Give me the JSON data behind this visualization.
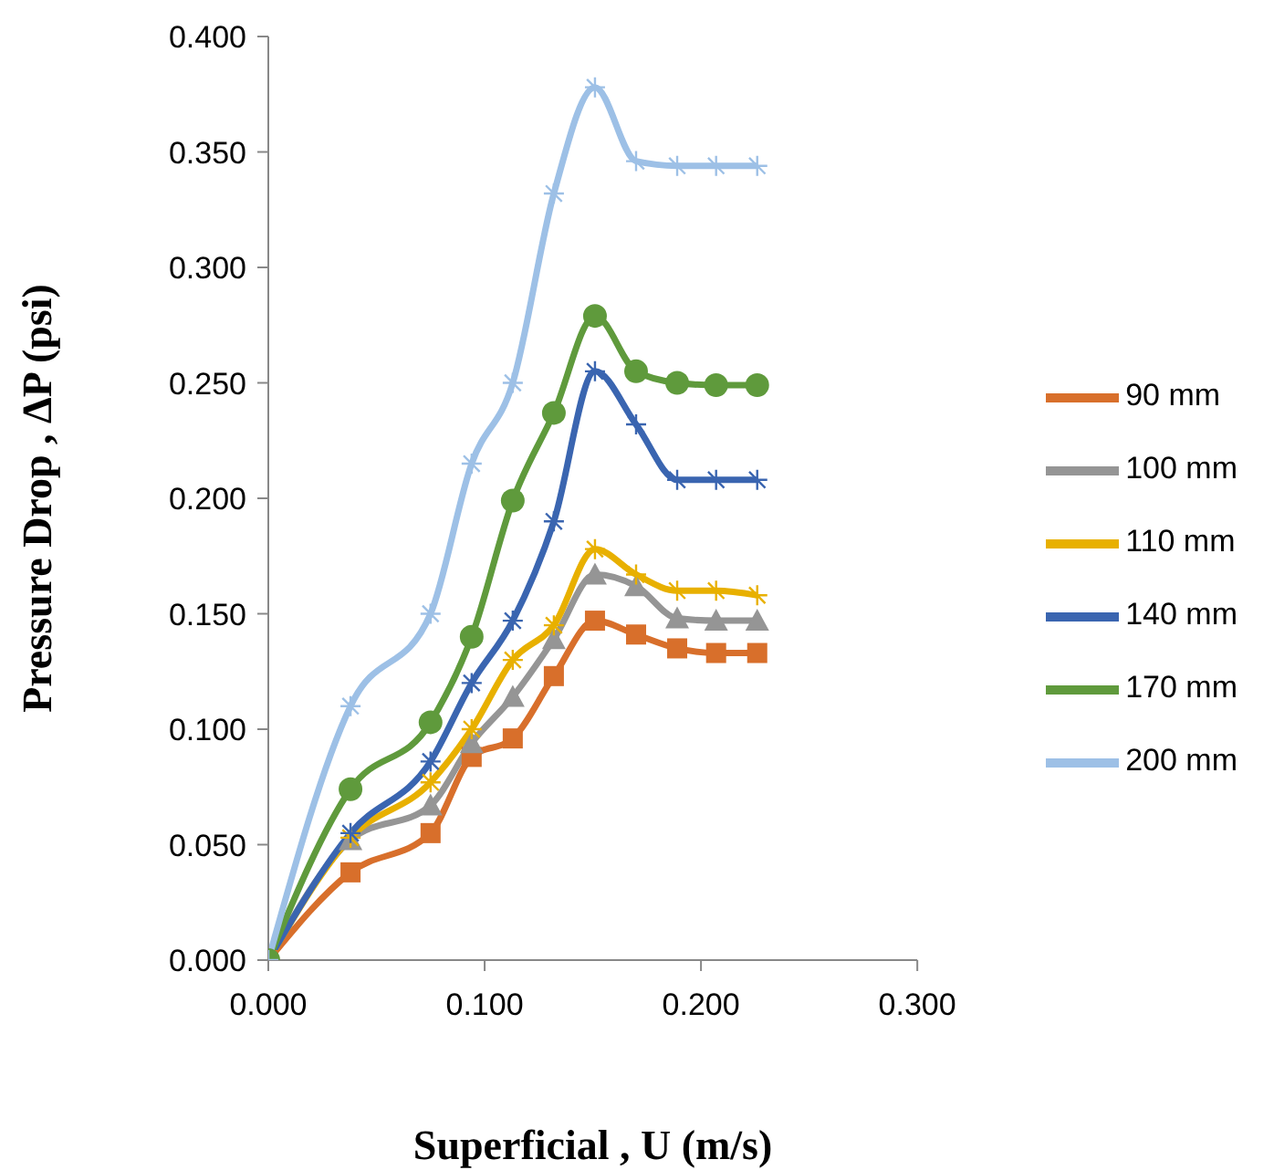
{
  "chart_data": {
    "type": "line",
    "xlabel": "Superficial , U (m/s)",
    "ylabel": "Pressure Drop , ΔP  (psi)",
    "x": [
      0,
      0.038,
      0.075,
      0.094,
      0.113,
      0.132,
      0.151,
      0.17,
      0.189,
      0.207,
      0.226
    ],
    "series": [
      {
        "name": "90 mm",
        "color": "#d86f2b",
        "marker": "square",
        "values": [
          0,
          0.038,
          0.055,
          0.088,
          0.096,
          0.123,
          0.147,
          0.141,
          0.135,
          0.133,
          0.133
        ]
      },
      {
        "name": "100 mm",
        "color": "#959595",
        "marker": "triangle",
        "values": [
          0,
          0.052,
          0.067,
          0.094,
          0.114,
          0.139,
          0.167,
          0.162,
          0.148,
          0.147,
          0.147
        ]
      },
      {
        "name": "110 mm",
        "color": "#e8b000",
        "marker": "cross",
        "values": [
          0,
          0.053,
          0.077,
          0.1,
          0.13,
          0.145,
          0.178,
          0.167,
          0.16,
          0.16,
          0.158
        ]
      },
      {
        "name": "140 mm",
        "color": "#3a65b0",
        "marker": "cross",
        "values": [
          0,
          0.055,
          0.086,
          0.12,
          0.147,
          0.19,
          0.255,
          0.232,
          0.208,
          0.208,
          0.208
        ]
      },
      {
        "name": "170 mm",
        "color": "#5f9a3c",
        "marker": "circle",
        "values": [
          0,
          0.074,
          0.103,
          0.14,
          0.199,
          0.237,
          0.279,
          0.255,
          0.25,
          0.249,
          0.249
        ]
      },
      {
        "name": "200 mm",
        "color": "#9dc0e6",
        "marker": "cross",
        "values": [
          0,
          0.11,
          0.15,
          0.215,
          0.25,
          0.332,
          0.378,
          0.346,
          0.344,
          0.344,
          0.344
        ]
      }
    ],
    "xlim": [
      0,
      0.3
    ],
    "xticks": [
      {
        "value": 0,
        "label": "0.000"
      },
      {
        "value": 0.1,
        "label": "0.100"
      },
      {
        "value": 0.2,
        "label": "0.200"
      },
      {
        "value": 0.3,
        "label": "0.300"
      }
    ],
    "ylim": [
      0,
      0.4
    ],
    "yticks": [
      {
        "value": 0,
        "label": "0.000"
      },
      {
        "value": 0.05,
        "label": "0.050"
      },
      {
        "value": 0.1,
        "label": "0.100"
      },
      {
        "value": 0.15,
        "label": "0.150"
      },
      {
        "value": 0.2,
        "label": "0.200"
      },
      {
        "value": 0.25,
        "label": "0.250"
      },
      {
        "value": 0.3,
        "label": "0.300"
      },
      {
        "value": 0.35,
        "label": "0.350"
      },
      {
        "value": 0.4,
        "label": "0.400"
      }
    ],
    "grid": false,
    "legend": "right",
    "line_style": "solid"
  }
}
